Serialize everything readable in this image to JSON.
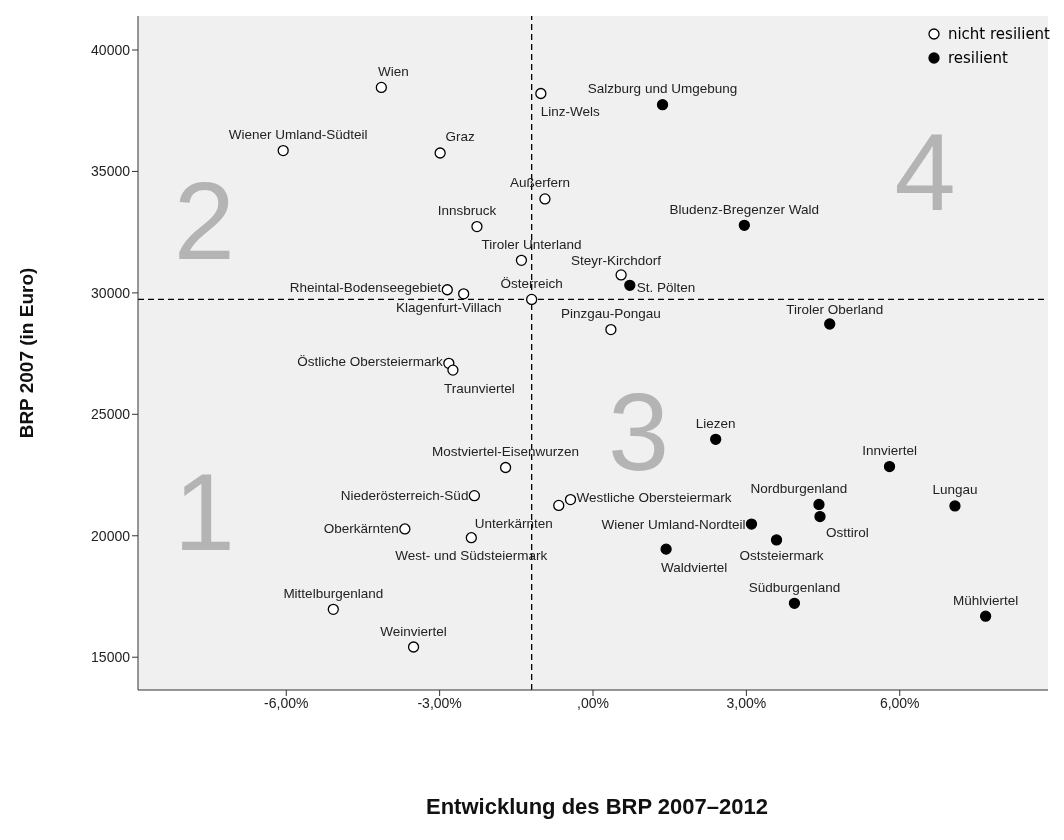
{
  "chart_data": {
    "type": "scatter",
    "xlabel": "Entwicklung des BRP 2007–2012",
    "ylabel": "BRP 2007 (in Euro)",
    "xlim": [
      -8.9,
      8.9
    ],
    "xticks": [
      {
        "value": -6,
        "label": "-6,00%"
      },
      {
        "value": -3,
        "label": "-3,00%"
      },
      {
        "value": 0,
        "label": ",00%"
      },
      {
        "value": 3,
        "label": "3,00%"
      },
      {
        "value": 6,
        "label": "6,00%"
      }
    ],
    "ylim": [
      13650,
      41400
    ],
    "yticks": [
      15000,
      20000,
      25000,
      30000,
      35000,
      40000
    ],
    "grid": false,
    "legend": "top right",
    "marker": "circle",
    "series": [
      {
        "name": "nicht resilient",
        "color": "#000000",
        "x": [
          -4.14,
          -6.06,
          -2.99,
          -1.02,
          -0.94,
          -2.27,
          -1.4,
          -2.85,
          -2.53,
          -1.2,
          0.55,
          0.35,
          -2.82,
          -2.74,
          -1.71,
          -2.32,
          -0.67,
          -0.44,
          -3.68,
          -2.38,
          -5.08,
          -3.51
        ],
        "values": [
          38460,
          35860,
          35760,
          38210,
          33870,
          32730,
          31340,
          30130,
          29960,
          29730,
          30740,
          28490,
          27100,
          26820,
          22810,
          21650,
          21250,
          21490,
          20280,
          19920,
          16970,
          15420
        ]
      },
      {
        "name": "resilient",
        "color": "#000000",
        "x": [
          1.36,
          2.96,
          0.72,
          4.63,
          2.4,
          5.8,
          7.08,
          4.42,
          4.44,
          3.1,
          3.59,
          1.43,
          3.94,
          7.68
        ],
        "values": [
          37750,
          32780,
          30310,
          28720,
          23970,
          22850,
          21230,
          21290,
          20790,
          20480,
          19830,
          19450,
          17220,
          16690
        ]
      }
    ],
    "ref_lines": [
      {
        "axis": "x",
        "value": -1.2,
        "line_style": "dashed",
        "color": "#000000"
      },
      {
        "axis": "y",
        "value": 29730,
        "line_style": "dashed",
        "color": "#000000"
      }
    ],
    "annotations": [
      "2",
      "4",
      "1",
      "3",
      {
        "text": "Wien",
        "x": -4.14,
        "y": 38460
      },
      {
        "text": "Wiener Umland-Südteil",
        "x": -6.06,
        "y": 35860
      },
      {
        "text": "Graz",
        "x": -2.99,
        "y": 35760
      },
      {
        "text": "Linz-Wels",
        "x": -1.02,
        "y": 38210
      },
      {
        "text": "Außerfern",
        "x": -0.94,
        "y": 33870
      },
      {
        "text": "Innsbruck",
        "x": -2.27,
        "y": 32730
      },
      {
        "text": "Tiroler Unterland",
        "x": -1.4,
        "y": 31340
      },
      {
        "text": "Rheintal-Bodenseegebiet",
        "x": -2.85,
        "y": 30130
      },
      {
        "text": "Klagenfurt-Villach",
        "x": -2.53,
        "y": 29960
      },
      {
        "text": "Österreich",
        "x": -1.2,
        "y": 29730
      },
      {
        "text": "Steyr-Kirchdorf",
        "x": 0.55,
        "y": 30740
      },
      {
        "text": "Pinzgau-Pongau",
        "x": 0.35,
        "y": 28490
      },
      {
        "text": "Östliche Obersteiermark",
        "x": -2.82,
        "y": 27100
      },
      {
        "text": "Traunviertel",
        "x": -2.74,
        "y": 26820
      },
      {
        "text": "Mostviertel-Eisenwurzen",
        "x": -1.71,
        "y": 22810
      },
      {
        "text": "Niederösterreich-Süd",
        "x": -2.32,
        "y": 21650
      },
      {
        "text": "Unterkärnten",
        "x": -0.67,
        "y": 21250
      },
      {
        "text": "Westliche Obersteiermark",
        "x": -0.44,
        "y": 21490
      },
      {
        "text": "Oberkärnten",
        "x": -3.68,
        "y": 20280
      },
      {
        "text": "West- und Südsteiermark",
        "x": -2.38,
        "y": 19920
      },
      {
        "text": "Mittelburgenland",
        "x": -5.08,
        "y": 16970
      },
      {
        "text": "Weinviertel",
        "x": -3.51,
        "y": 15420
      },
      {
        "text": "Salzburg und Umgebung",
        "x": 1.36,
        "y": 37750
      },
      {
        "text": "Bludenz-Bregenzer Wald",
        "x": 2.96,
        "y": 32780
      },
      {
        "text": "St. Pölten",
        "x": 0.72,
        "y": 30310
      },
      {
        "text": "Tiroler Oberland",
        "x": 4.63,
        "y": 28720
      },
      {
        "text": "Liezen",
        "x": 2.4,
        "y": 23970
      },
      {
        "text": "Innviertel",
        "x": 5.8,
        "y": 22850
      },
      {
        "text": "Lungau",
        "x": 7.08,
        "y": 21230
      },
      {
        "text": "Nordburgenland",
        "x": 4.42,
        "y": 21290
      },
      {
        "text": "Osttirol",
        "x": 4.44,
        "y": 20790
      },
      {
        "text": "Wiener Umland-Nordteil",
        "x": 3.1,
        "y": 20480
      },
      {
        "text": "Oststeiermark",
        "x": 3.59,
        "y": 19830
      },
      {
        "text": "Waldviertel",
        "x": 1.43,
        "y": 19450
      },
      {
        "text": "Südburgenland",
        "x": 3.94,
        "y": 17220
      },
      {
        "text": "Mühlviertel",
        "x": 7.68,
        "y": 16690
      }
    ]
  }
}
